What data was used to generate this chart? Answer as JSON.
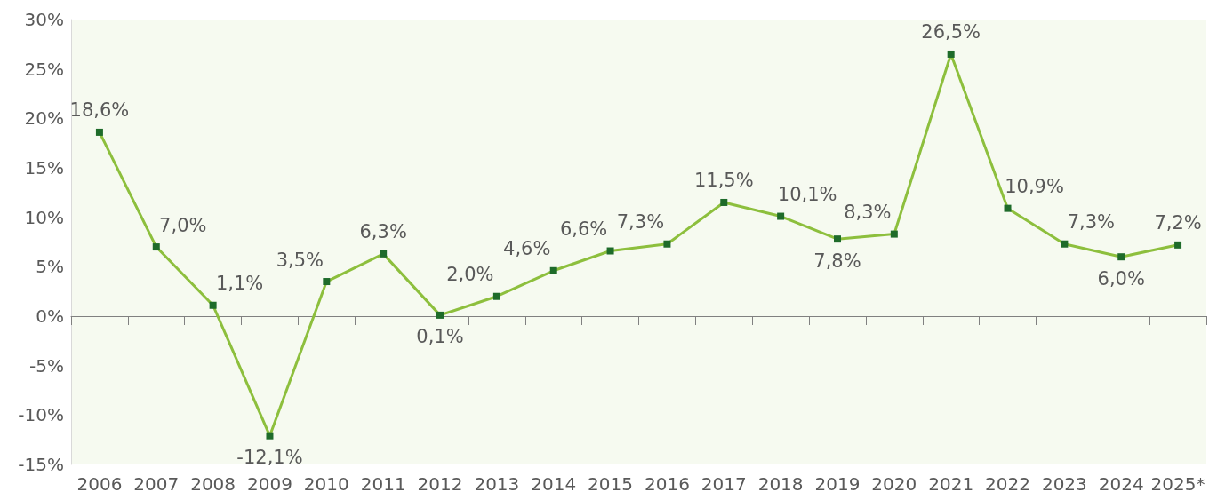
{
  "chart_data": {
    "type": "line",
    "categories": [
      "2006",
      "2007",
      "2008",
      "2009",
      "2010",
      "2011",
      "2012",
      "2013",
      "2014",
      "2015",
      "2016",
      "2017",
      "2018",
      "2019",
      "2020",
      "2021",
      "2022",
      "2023",
      "2024",
      "2025*"
    ],
    "series": [
      {
        "color": "#8dbf3d",
        "colors": [
          "#1e6b2a",
          "#1e6b2a",
          "#1e6b2a",
          "#1e6b2a",
          "#1e6b2a",
          "#1e6b2a",
          "#1e6b2a",
          "#1e6b2a",
          "#1e6b2a",
          "#1e6b2a",
          "#1e6b2a",
          "#1e6b2a",
          "#1e6b2a",
          "#1e6b2a",
          "#1e6b2a",
          "#1e6b2a",
          "#1e6b2a",
          "#1e6b2a",
          "#1e6b2a",
          "#1e6b2a"
        ],
        "values": [
          18.6,
          7.0,
          1.1,
          -12.1,
          3.5,
          6.3,
          0.1,
          2.0,
          4.6,
          6.6,
          7.3,
          11.5,
          10.1,
          7.8,
          8.3,
          26.5,
          10.9,
          7.3,
          6.0,
          7.2
        ],
        "value_labels": [
          "18,6%",
          "7,0%",
          "1,1%",
          "-12,1%",
          "3,5%",
          "6,3%",
          "0,1%",
          "2,0%",
          "4,6%",
          "6,6%",
          "7,3%",
          "11,5%",
          "10,1%",
          "7,8%",
          "8,3%",
          "26,5%",
          "10,9%",
          "7,3%",
          "6,0%",
          "7,2%"
        ]
      }
    ],
    "ylim": [
      -15,
      30
    ],
    "yticks": [
      {
        "value": -15,
        "label": "-15%"
      },
      {
        "value": -10,
        "label": "-10%"
      },
      {
        "value": -5,
        "label": "-5%"
      },
      {
        "value": 0,
        "label": "0%"
      },
      {
        "value": 5,
        "label": "5%"
      },
      {
        "value": 10,
        "label": "10%"
      },
      {
        "value": 15,
        "label": "15%"
      },
      {
        "value": 20,
        "label": "20%"
      },
      {
        "value": 25,
        "label": "25%"
      },
      {
        "value": 30,
        "label": "30%"
      }
    ],
    "marker": "square",
    "line_style": "solid"
  }
}
